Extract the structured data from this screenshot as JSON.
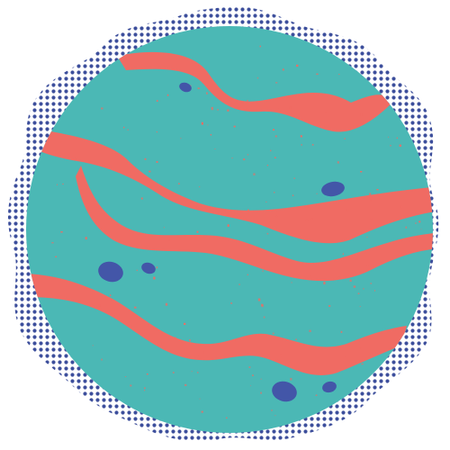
{
  "illustration": {
    "subject": "planet",
    "colors": {
      "background": "#ffffff",
      "planet_body": "#4bb8b5",
      "bands": "#f06b63",
      "speckles": "#f06b63",
      "craters": "#4356a8",
      "halftone_halo": "#3d4f9c"
    },
    "band_count": 4,
    "crater_count": 6,
    "halo_style": "halftone-dots-scalloped"
  }
}
